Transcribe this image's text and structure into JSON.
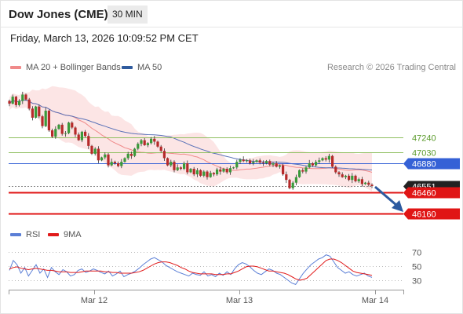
{
  "header": {
    "title": "Dow Jones (CME)",
    "timeframe": "30 MIN"
  },
  "datetime": "Friday, March 13, 2026 10:09:52 PM CET",
  "legend": [
    {
      "label": "MA 20 + Bollinger Bands",
      "color": "#f08a8a"
    },
    {
      "label": "MA 50",
      "color": "#2f5b9e"
    }
  ],
  "credit": "Research © 2026 Trading Central",
  "rsi_legend": [
    {
      "label": "RSI",
      "color": "#5b7fd6"
    },
    {
      "label": "9MA",
      "color": "#e11b1b"
    }
  ],
  "colors": {
    "up": "#3a9a3a",
    "down": "#b62a2a",
    "support": "#e01515",
    "resistance": "#8fbf60",
    "pivot": "#3561d6",
    "arrow": "#2c5aa0",
    "last": "#222222"
  },
  "chart_data": [
    {
      "type": "candlestick",
      "title": "",
      "x_ticks": [
        "Mar 12",
        "Mar 13",
        "Mar 14"
      ],
      "ylim": [
        46110,
        46600
      ],
      "levels": [
        {
          "label": "47240",
          "value": 47240,
          "kind": "resistance"
        },
        {
          "label": "47030",
          "value": 47030,
          "kind": "resistance"
        },
        {
          "label": "46880",
          "value": 46880,
          "kind": "pivot"
        },
        {
          "label": "46551",
          "value": 46551,
          "kind": "last"
        },
        {
          "label": "46460",
          "value": 46460,
          "kind": "support"
        },
        {
          "label": "46160",
          "value": 46160,
          "kind": "support"
        }
      ],
      "close": [
        47720,
        47820,
        47700,
        47760,
        47850,
        47780,
        47650,
        47520,
        47680,
        47540,
        47400,
        47620,
        47340,
        47250,
        47360,
        47420,
        47290,
        47300,
        47450,
        47380,
        47280,
        47200,
        47320,
        47260,
        47120,
        47010,
        47080,
        46920,
        46960,
        47000,
        46850,
        46900,
        46880,
        46840,
        46900,
        46950,
        47010,
        46980,
        47080,
        47150,
        47200,
        47130,
        47160,
        47220,
        47180,
        47110,
        47050,
        46950,
        46850,
        46900,
        46780,
        46820,
        46800,
        46880,
        46750,
        46800,
        46720,
        46780,
        46700,
        46760,
        46680,
        46740,
        46720,
        46790,
        46760,
        46800,
        46750,
        46810,
        46820,
        46900,
        46930,
        46910,
        46920,
        46880,
        46900,
        46920,
        46890,
        46880,
        46910,
        46860,
        46880,
        46830,
        46850,
        46720,
        46640,
        46520,
        46600,
        46680,
        46780,
        46760,
        46820,
        46880,
        46850,
        46900,
        46920,
        46950,
        46930,
        46980,
        46830,
        46750,
        46720,
        46680,
        46700,
        46640,
        46700,
        46620,
        46650,
        46580,
        46600,
        46570,
        46551
      ],
      "rsi": {
        "ticks": [
          70,
          50,
          30
        ],
        "ylim": [
          20,
          80
        ],
        "rsi": [
          44,
          58,
          52,
          40,
          48,
          36,
          44,
          52,
          40,
          46,
          34,
          48,
          42,
          38,
          45,
          42,
          36,
          38,
          44,
          46,
          41,
          43,
          46,
          44,
          41,
          39,
          43,
          36,
          39,
          43,
          35,
          38,
          40,
          43,
          47,
          52,
          56,
          60,
          62,
          59,
          56,
          51,
          48,
          45,
          42,
          40,
          38,
          36,
          40,
          38,
          37,
          42,
          36,
          38,
          35,
          40,
          37,
          42,
          38,
          46,
          52,
          55,
          53,
          49,
          44,
          40,
          38,
          42,
          46,
          44,
          40,
          38,
          34,
          30,
          26,
          24,
          32,
          40,
          46,
          52,
          56,
          60,
          62,
          66,
          64,
          56,
          48,
          44,
          40,
          42,
          38,
          36,
          38,
          40,
          36,
          34
        ],
        "ma9": [
          46,
          48,
          49,
          47,
          46,
          45,
          46,
          47,
          46,
          45,
          44,
          44,
          43,
          42,
          42,
          42,
          41,
          41,
          41,
          42,
          43,
          43,
          43,
          43,
          43,
          42,
          42,
          41,
          41,
          40,
          40,
          40,
          40,
          41,
          42,
          44,
          47,
          50,
          53,
          55,
          56,
          56,
          55,
          53,
          51,
          48,
          46,
          43,
          41,
          40,
          39,
          39,
          39,
          39,
          38,
          38,
          38,
          39,
          39,
          41,
          43,
          46,
          49,
          50,
          50,
          49,
          47,
          45,
          43,
          43,
          42,
          41,
          40,
          38,
          35,
          32,
          30,
          31,
          33,
          38,
          43,
          48,
          53,
          58,
          60,
          60,
          58,
          55,
          51,
          47,
          43,
          41,
          40,
          39,
          38,
          37
        ]
      }
    }
  ]
}
